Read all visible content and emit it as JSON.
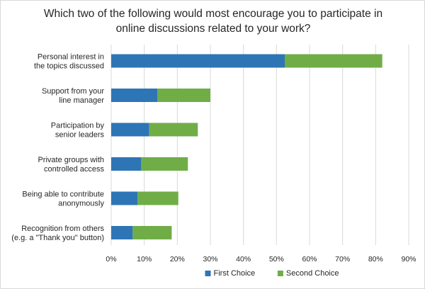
{
  "chart_data": {
    "type": "bar",
    "orientation": "horizontal",
    "stacked": true,
    "title": "Which two of the following would most encourage you to participate in online discussions related to your work?",
    "categories": [
      [
        "Personal interest in",
        "the topics discussed"
      ],
      [
        "Support from your",
        "line manager"
      ],
      [
        "Participation by",
        "senior leaders"
      ],
      [
        "Private groups with",
        "controlled access"
      ],
      [
        "Being able to contribute",
        "anonymously"
      ],
      [
        "Recognition from others",
        "(e.g. a \"Thank you\" button)"
      ]
    ],
    "series": [
      {
        "name": "First Choice",
        "color": "#2e75b6",
        "values": [
          52.5,
          14,
          11.5,
          9,
          8,
          6.5
        ]
      },
      {
        "name": "Second Choice",
        "color": "#70ad47",
        "values": [
          29.5,
          16,
          14.7,
          14.2,
          12.3,
          11.8
        ]
      }
    ],
    "xlim": [
      0,
      90
    ],
    "xticks": [
      "0%",
      "10%",
      "20%",
      "30%",
      "40%",
      "50%",
      "60%",
      "70%",
      "80%",
      "90%"
    ],
    "xtick_values": [
      0,
      10,
      20,
      30,
      40,
      50,
      60,
      70,
      80,
      90
    ],
    "grid": true,
    "legend_position": "bottom"
  }
}
